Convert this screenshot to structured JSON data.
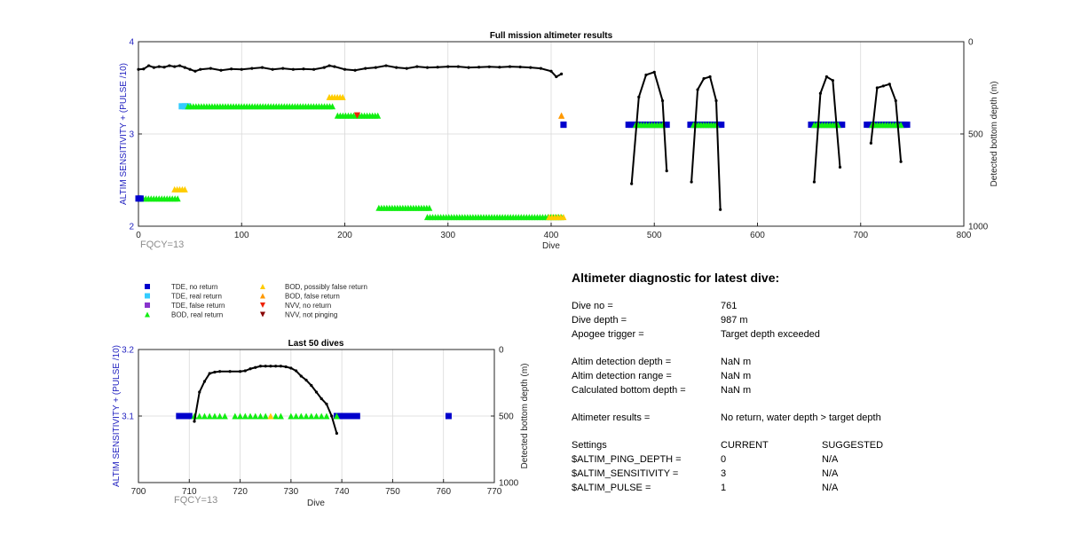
{
  "top_chart": {
    "title": "Full mission altimeter results",
    "xlabel": "Dive",
    "ylabel_left": "ALTIM SENSITIVITY + (PULSE /10)",
    "ylabel_right": "Detected bottom depth (m)",
    "xticks": [
      "0",
      "100",
      "200",
      "300",
      "400",
      "500",
      "600",
      "700",
      "800"
    ],
    "yticks_left": [
      "2",
      "3",
      "4"
    ],
    "yticks_right": [
      "0",
      "500",
      "1000"
    ],
    "fqcy": "FQCY=13"
  },
  "bottom_chart": {
    "title": "Last 50 dives",
    "xlabel": "Dive",
    "ylabel_left": "ALTIM SENSITIVITY + (PULSE /10)",
    "ylabel_right": "Detected bottom depth (m)",
    "xticks": [
      "700",
      "710",
      "720",
      "730",
      "740",
      "750",
      "760",
      "770"
    ],
    "yticks_left": [
      "3.1",
      "3.2"
    ],
    "yticks_right": [
      "0",
      "500",
      "1000"
    ],
    "fqcy": "FQCY=13"
  },
  "legend": {
    "items": [
      {
        "label": "TDE, no return",
        "shape": "square",
        "color": "#0000cc"
      },
      {
        "label": "TDE, real return",
        "shape": "square",
        "color": "#33ccff"
      },
      {
        "label": "TDE, false return",
        "shape": "square",
        "color": "#8833cc"
      },
      {
        "label": "BOD, real return",
        "shape": "tri-up",
        "color": "#11ee11"
      },
      {
        "label": "BOD, possibly false return",
        "shape": "tri-up",
        "color": "#ffcc00"
      },
      {
        "label": "BOD, false return",
        "shape": "tri-up",
        "color": "#ff9900"
      },
      {
        "label": "NVV, no return",
        "shape": "tri-down",
        "color": "#ee2200"
      },
      {
        "label": "NVV, not pinging",
        "shape": "tri-down",
        "color": "#880000"
      }
    ]
  },
  "diagnostic": {
    "heading": "Altimeter diagnostic for latest dive:",
    "dive_no_label": "Dive no =",
    "dive_no": "761",
    "dive_depth_label": "Dive depth =",
    "dive_depth": "987 m",
    "apogee_label": "Apogee trigger =",
    "apogee": "Target depth exceeded",
    "detect_depth_label": "Altim detection depth =",
    "detect_depth": "NaN m",
    "detect_range_label": "Altim detection range =",
    "detect_range": "NaN m",
    "calc_depth_label": "Calculated bottom depth =",
    "calc_depth": "NaN m",
    "results_label": "Altimeter results =",
    "results": "No return, water depth > target depth",
    "settings_label": "Settings",
    "current_label": "CURRENT",
    "suggested_label": "SUGGESTED",
    "ping_depth_label": "$ALTIM_PING_DEPTH =",
    "ping_depth_cur": "0",
    "ping_depth_sug": "N/A",
    "sensitivity_label": "$ALTIM_SENSITIVITY =",
    "sensitivity_cur": "3",
    "sensitivity_sug": "N/A",
    "pulse_label": "$ALTIM_PULSE =",
    "pulse_cur": "1",
    "pulse_sug": "N/A"
  },
  "chart_data": [
    {
      "type": "scatter",
      "title": "Full mission altimeter results",
      "xlabel": "Dive",
      "ylabel": "ALTIM SENSITIVITY + (PULSE /10)",
      "y2label": "Detected bottom depth (m)",
      "xlim": [
        0,
        800
      ],
      "ylim": [
        2,
        4
      ],
      "y2lim": [
        0,
        1000
      ],
      "y2_reversed": true,
      "grid": true,
      "segments": [
        {
          "class": "BOD, real return",
          "x0": 2,
          "x1": 38,
          "y": 2.3
        },
        {
          "class": "BOD, possibly false return",
          "x0": 35,
          "x1": 45,
          "y": 2.4
        },
        {
          "class": "TDE, no return",
          "x0": 0,
          "x1": 2,
          "y": 2.3
        },
        {
          "class": "TDE, real return",
          "x0": 42,
          "x1": 48,
          "y": 3.3
        },
        {
          "class": "BOD, real return",
          "x0": 48,
          "x1": 188,
          "y": 3.3
        },
        {
          "class": "BOD, possibly false return",
          "x0": 185,
          "x1": 198,
          "y": 3.4
        },
        {
          "class": "BOD, real return",
          "x0": 193,
          "x1": 232,
          "y": 3.2
        },
        {
          "class": "BOD, real return",
          "x0": 233,
          "x1": 282,
          "y": 2.2
        },
        {
          "class": "BOD, real return",
          "x0": 280,
          "x1": 410,
          "y": 2.1
        },
        {
          "class": "BOD, possibly false return",
          "x0": 398,
          "x1": 412,
          "y": 2.1
        },
        {
          "class": "BOD, false return",
          "x0": 410,
          "x1": 410,
          "y": 3.2
        },
        {
          "class": "TDE, no return",
          "x0": 412,
          "x1": 412,
          "y": 3.1
        },
        {
          "class": "TDE, no return",
          "x0": 475,
          "x1": 512,
          "y": 3.1
        },
        {
          "class": "BOD, real return",
          "x0": 482,
          "x1": 508,
          "y": 3.1
        },
        {
          "class": "TDE, no return",
          "x0": 535,
          "x1": 565,
          "y": 3.1
        },
        {
          "class": "BOD, real return",
          "x0": 538,
          "x1": 560,
          "y": 3.1
        },
        {
          "class": "TDE, no return",
          "x0": 652,
          "x1": 682,
          "y": 3.1
        },
        {
          "class": "BOD, real return",
          "x0": 655,
          "x1": 678,
          "y": 3.1
        },
        {
          "class": "TDE, no return",
          "x0": 706,
          "x1": 745,
          "y": 3.1
        },
        {
          "class": "BOD, real return",
          "x0": 711,
          "x1": 739,
          "y": 3.1
        },
        {
          "class": "NVV, no return",
          "x0": 212,
          "x1": 212,
          "y": 3.2
        }
      ],
      "depth_series": [
        {
          "name": "bottom_flat",
          "x": [
            0,
            5,
            10,
            15,
            20,
            25,
            30,
            35,
            40,
            45,
            50,
            55,
            60,
            70,
            80,
            90,
            100,
            110,
            120,
            130,
            140,
            150,
            160,
            170,
            180,
            185,
            190,
            200,
            210,
            220,
            230,
            240,
            250,
            260,
            270,
            280,
            290,
            300,
            310,
            320,
            330,
            340,
            350,
            360,
            370,
            380,
            390,
            400,
            405,
            410
          ],
          "y": [
            150,
            148,
            130,
            140,
            135,
            138,
            130,
            135,
            130,
            140,
            150,
            160,
            150,
            145,
            155,
            148,
            150,
            145,
            140,
            150,
            145,
            150,
            148,
            150,
            140,
            130,
            135,
            150,
            155,
            145,
            140,
            130,
            140,
            145,
            135,
            140,
            138,
            135,
            135,
            140,
            138,
            136,
            138,
            135,
            137,
            140,
            145,
            160,
            190,
            175
          ]
        },
        {
          "name": "dive_profile_1",
          "x": [
            478,
            485,
            492,
            500,
            508,
            512
          ],
          "y": [
            770,
            300,
            180,
            165,
            320,
            700
          ]
        },
        {
          "name": "dive_profile_2",
          "x": [
            536,
            542,
            548,
            554,
            560,
            564
          ],
          "y": [
            760,
            260,
            200,
            190,
            320,
            910
          ]
        },
        {
          "name": "dive_profile_3",
          "x": [
            655,
            661,
            667,
            673,
            680
          ],
          "y": [
            760,
            280,
            190,
            210,
            680
          ]
        },
        {
          "name": "dive_profile_4",
          "x": [
            710,
            716,
            722,
            728,
            734,
            739
          ],
          "y": [
            550,
            250,
            240,
            230,
            320,
            650
          ]
        }
      ]
    },
    {
      "type": "scatter",
      "title": "Last 50 dives",
      "xlabel": "Dive",
      "ylabel": "ALTIM SENSITIVITY + (PULSE /10)",
      "y2label": "Detected bottom depth (m)",
      "xlim": [
        700,
        770
      ],
      "ylim": [
        3.0,
        3.2
      ],
      "y2lim": [
        0,
        1000
      ],
      "y2_reversed": true,
      "grid": true,
      "points": [
        {
          "class": "TDE, no return",
          "x": [
            708,
            709,
            710,
            739,
            740,
            741,
            742,
            743,
            761
          ],
          "y": 3.1
        },
        {
          "class": "BOD, real return",
          "x": [
            711,
            712,
            713,
            714,
            715,
            716,
            717,
            719,
            720,
            721,
            722,
            723,
            724,
            725,
            727,
            728,
            730,
            731,
            732,
            733,
            734,
            735,
            736,
            737,
            739
          ],
          "y": 3.1
        },
        {
          "class": "BOD, possibly false return",
          "x": [
            726
          ],
          "y": 3.1
        }
      ],
      "depth_series": [
        {
          "name": "depth",
          "x": [
            711,
            712,
            713,
            714,
            715,
            716,
            718,
            720,
            721,
            722,
            723,
            724,
            725,
            726,
            727,
            728,
            729,
            730,
            731,
            732,
            733,
            734,
            735,
            736,
            737,
            738,
            739
          ],
          "y": [
            540,
            320,
            240,
            180,
            170,
            165,
            165,
            165,
            160,
            145,
            135,
            125,
            125,
            125,
            125,
            125,
            130,
            140,
            160,
            200,
            230,
            270,
            320,
            370,
            410,
            500,
            630
          ]
        }
      ]
    }
  ]
}
